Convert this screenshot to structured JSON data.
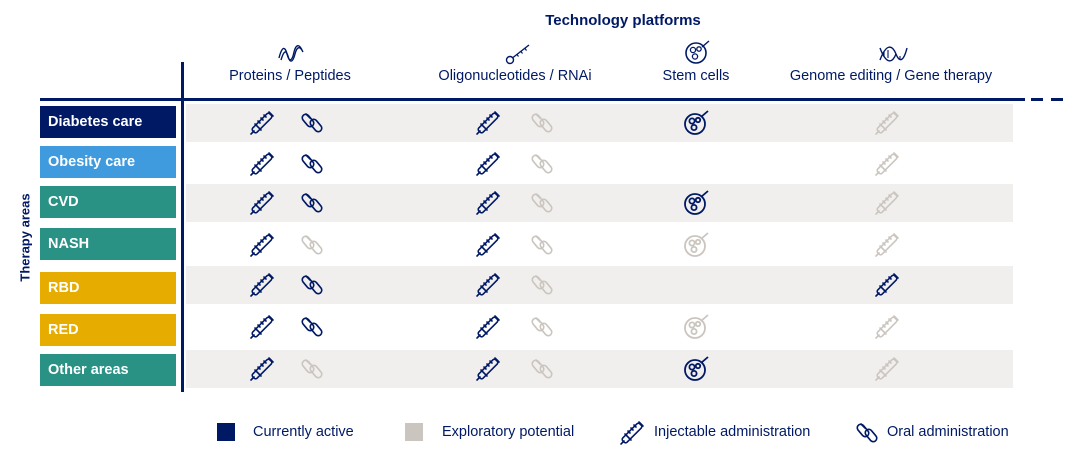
{
  "header": {
    "title": "Technology platforms"
  },
  "axis_label": "Therapy areas",
  "platforms": [
    {
      "label": "Proteins / Peptides",
      "icon": "protein-icon"
    },
    {
      "label": "Oligonucleotides / RNAi",
      "icon": "oligonucleotide-icon"
    },
    {
      "label": "Stem cells",
      "icon": "stem-cell-icon"
    },
    {
      "label": "Genome editing / Gene therapy",
      "icon": "dna-icon"
    }
  ],
  "therapy_areas": [
    {
      "label": "Diabetes care",
      "color": "#001965",
      "cells": [
        {
          "injectable": "active",
          "oral": "active"
        },
        {
          "injectable": "active",
          "oral": "exploratory"
        },
        {
          "stem": "active"
        },
        {
          "injectable": "exploratory"
        }
      ]
    },
    {
      "label": "Obesity care",
      "color": "#3f9ade",
      "cells": [
        {
          "injectable": "active",
          "oral": "active"
        },
        {
          "injectable": "active",
          "oral": "exploratory"
        },
        {
          "stem": "none"
        },
        {
          "injectable": "exploratory"
        }
      ]
    },
    {
      "label": "CVD",
      "color": "#2a9185",
      "cells": [
        {
          "injectable": "active",
          "oral": "active"
        },
        {
          "injectable": "active",
          "oral": "exploratory"
        },
        {
          "stem": "active"
        },
        {
          "injectable": "exploratory"
        }
      ]
    },
    {
      "label": "NASH",
      "color": "#2a9185",
      "cells": [
        {
          "injectable": "active",
          "oral": "exploratory"
        },
        {
          "injectable": "active",
          "oral": "exploratory"
        },
        {
          "stem": "exploratory"
        },
        {
          "injectable": "exploratory"
        }
      ]
    },
    {
      "label": "RBD",
      "color": "#e6ac00",
      "cells": [
        {
          "injectable": "active",
          "oral": "active"
        },
        {
          "injectable": "active",
          "oral": "exploratory"
        },
        {
          "stem": "none"
        },
        {
          "injectable": "active"
        }
      ]
    },
    {
      "label": "RED",
      "color": "#e6ac00",
      "cells": [
        {
          "injectable": "active",
          "oral": "active"
        },
        {
          "injectable": "active",
          "oral": "exploratory"
        },
        {
          "stem": "exploratory"
        },
        {
          "injectable": "exploratory"
        }
      ]
    },
    {
      "label": "Other areas",
      "color": "#2a9185",
      "cells": [
        {
          "injectable": "active",
          "oral": "exploratory"
        },
        {
          "injectable": "active",
          "oral": "exploratory"
        },
        {
          "stem": "active"
        },
        {
          "injectable": "exploratory"
        }
      ]
    }
  ],
  "legend": {
    "active_label": "Currently active",
    "exploratory_label": "Exploratory potential",
    "injectable_label": "Injectable administration",
    "oral_label": "Oral administration"
  },
  "colors": {
    "active": "#001965",
    "exploratory": "#cac5bf",
    "row_background": "#f1efed",
    "diabetes": "#001965",
    "obesity": "#3f9ade",
    "teal": "#2a9185",
    "yellow": "#e6ac00"
  }
}
